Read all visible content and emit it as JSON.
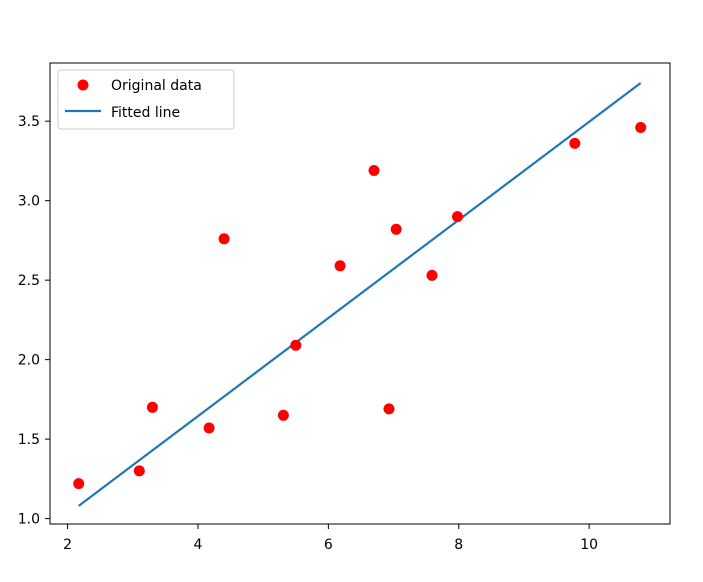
{
  "chart_data": {
    "type": "scatter",
    "title": "",
    "xlabel": "",
    "ylabel": "",
    "xlim": [
      1.73,
      11.24
    ],
    "ylim": [
      0.966,
      3.866
    ],
    "x_ticks": [
      2,
      4,
      6,
      8,
      10
    ],
    "y_ticks": [
      1.0,
      1.5,
      2.0,
      2.5,
      3.0,
      3.5
    ],
    "x_tick_labels": [
      "2",
      "4",
      "6",
      "8",
      "10"
    ],
    "y_tick_labels": [
      "1.0",
      "1.5",
      "2.0",
      "2.5",
      "3.0",
      "3.5"
    ],
    "grid": false,
    "legend_position": "top-left",
    "series": [
      {
        "name": "Original data",
        "kind": "scatter",
        "color": "#ff0000",
        "points": [
          {
            "x": 2.17,
            "y": 1.22
          },
          {
            "x": 3.1,
            "y": 1.3
          },
          {
            "x": 3.3,
            "y": 1.7
          },
          {
            "x": 4.17,
            "y": 1.57
          },
          {
            "x": 4.4,
            "y": 2.76
          },
          {
            "x": 5.31,
            "y": 1.65
          },
          {
            "x": 5.5,
            "y": 2.09
          },
          {
            "x": 6.18,
            "y": 2.59
          },
          {
            "x": 6.7,
            "y": 3.19
          },
          {
            "x": 6.93,
            "y": 1.69
          },
          {
            "x": 7.04,
            "y": 2.82
          },
          {
            "x": 7.59,
            "y": 2.53
          },
          {
            "x": 7.98,
            "y": 2.9
          },
          {
            "x": 9.78,
            "y": 3.36
          },
          {
            "x": 10.79,
            "y": 3.46
          }
        ]
      },
      {
        "name": "Fitted line",
        "kind": "line",
        "color": "#1f77b4",
        "points": [
          {
            "x": 2.17,
            "y": 1.08
          },
          {
            "x": 10.79,
            "y": 3.74
          }
        ]
      }
    ]
  }
}
